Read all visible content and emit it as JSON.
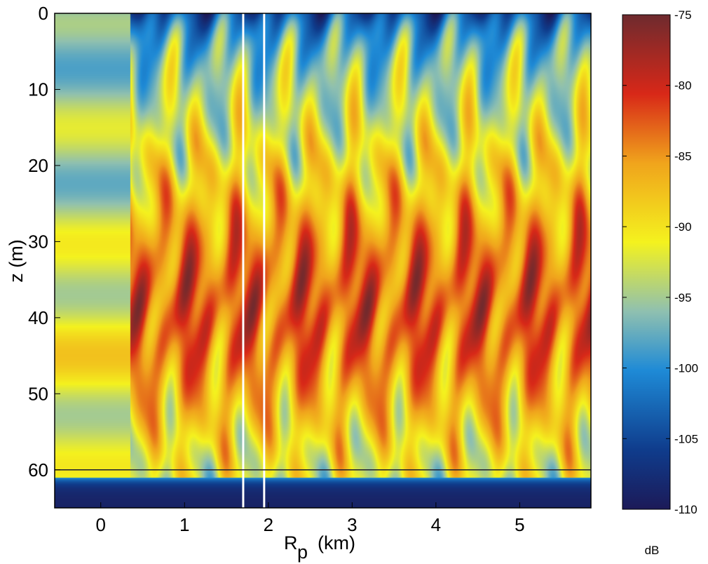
{
  "chart_data": {
    "type": "heatmap",
    "title": "",
    "xlabel": "R",
    "xlabel_sub": "p",
    "xlabel_unit": "(km)",
    "ylabel": "z (m)",
    "xlim": [
      -0.55,
      5.85
    ],
    "ylim": [
      65,
      0
    ],
    "x_ticks": [
      "0",
      "1",
      "2",
      "3",
      "4",
      "5"
    ],
    "y_ticks": [
      "0",
      "10",
      "20",
      "30",
      "40",
      "50",
      "60"
    ],
    "colorbar": {
      "label": "dB",
      "ticks": [
        "-75",
        "-80",
        "-85",
        "-90",
        "-95",
        "-100",
        "-105",
        "-110"
      ],
      "range": [
        -110,
        -75
      ],
      "colormap": [
        "#1c1a58",
        "#0f3c8c",
        "#1e8ad6",
        "#8fc0b0",
        "#f4f21e",
        "#f0a41c",
        "#d82818",
        "#6e2a2e"
      ]
    },
    "reference_lines": {
      "vertical_x": [
        1.7,
        1.95
      ],
      "vertical_color": "#ffffff",
      "horizontal_y": [
        60
      ],
      "horizontal_color": "#1a1a30"
    }
  }
}
